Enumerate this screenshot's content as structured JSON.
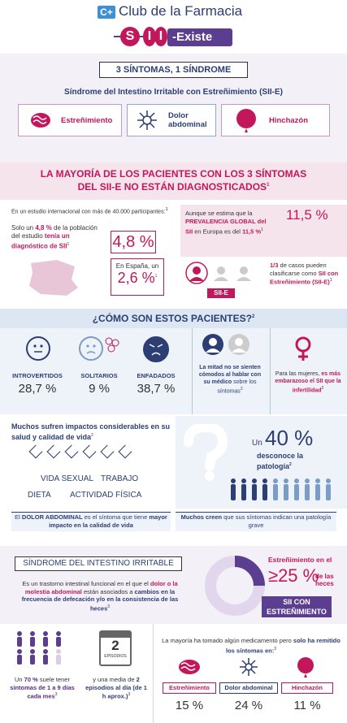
{
  "header": {
    "logo_badge": "C+",
    "logo_text": "Club de la Farmacia",
    "brand_letters": [
      "S",
      "I",
      "I"
    ],
    "brand_rest": "-Existe",
    "accent_colors": {
      "purple": "#5b3e8f",
      "pink": "#c2185b",
      "navy": "#2c3e73"
    }
  },
  "section1": {
    "title": "3 SÍNTOMAS, 1 SÍNDROME",
    "subtitle": "Síndrome del Intestino Irritable con Estreñimiento (SII-E)",
    "symptoms": [
      {
        "label": "Estreñimiento",
        "icon": "intestine-icon"
      },
      {
        "label": "Dolor abdominal",
        "icon": "pain-burst-icon"
      },
      {
        "label": "Hinchazón",
        "icon": "balloon-icon"
      }
    ]
  },
  "section2": {
    "title_line1": "LA MAYORÍA DE LOS PACIENTES CON LOS 3 SÍNTOMAS",
    "title_line2": "DEL SII-E NO ESTÁN DIAGNOSTICADOS",
    "title_sup": "1",
    "study_note": "En un estudio internacional con más de 40.000 participantes:",
    "study_sup": "1",
    "diag_text_a": "Solo un ",
    "diag_text_b": "4,8 %",
    "diag_text_c": " de la población del estudio ",
    "diag_text_d": "tenía un diagnóstico de SII",
    "diag_sup": "1",
    "pct_intl": "4,8 %",
    "spain_label": "En España, un",
    "pct_spain": "2,6 %",
    "spain_sup": "1",
    "prev_text_a": "Aunque se estima que la ",
    "prev_text_b": "PREVALENCIA GLOBAL del SII",
    "prev_text_c": " en Europa es del ",
    "prev_text_d": "11,5 %",
    "prev_sup": "1",
    "pct_europe": "11,5 %",
    "badge": "SII-E",
    "third_a": "1/3",
    "third_b": " de casos pueden clasificarse como ",
    "third_c": "SII con Estreñimiento (SII-E)",
    "third_sup": "1"
  },
  "section3": {
    "title": "¿CÓMO SON ESTOS PACIENTES?",
    "title_sup": "2",
    "traits": [
      {
        "label": "INTROVERTIDOS",
        "pct": "28,7 %"
      },
      {
        "label": "SOLITARIOS",
        "pct": "9 %"
      },
      {
        "label": "ENFADADOS",
        "pct": "38,7 %"
      }
    ],
    "half_a": "La mitad no se sienten cómodos al hablar con su médico",
    "half_b": " sobre los síntomas",
    "half_sup": "2",
    "women_a": "Para las mujeres, ",
    "women_b": "es más embarazoso el SII que la infertilidad",
    "women_sup": "2"
  },
  "section4": {
    "impact_a": "Muchos sufren impactos considerables en su ",
    "impact_b": "salud y calidad de vida",
    "impact_sup": "2",
    "keywords": [
      "VIDA SEXUAL",
      "TRABAJO",
      "DIETA",
      "ACTIVIDAD FÍSICA"
    ],
    "unknown_prefix": "Un",
    "unknown_pct": "40 %",
    "unknown_text": "desconoce la patología",
    "unknown_sup": "2",
    "pain_a": "El ",
    "pain_b": "DOLOR ABDOMINAL",
    "pain_c": " es el síntoma que tiene ",
    "pain_d": "mayor impacto en la calidad de vida",
    "serious_a": "Muchos creen",
    "serious_b": " que sus síntomas indican ",
    "serious_c": "una patología grave"
  },
  "section5": {
    "title": "SÍNDROME DEL INTESTINO IRRITABLE",
    "def_a": "Es un trastorno intestinal funcional en el que el ",
    "def_b": "dolor o la molestia abdominal",
    "def_c": " están asociados a ",
    "def_d": "cambios en la frecuencia de defecación y/o en la consistencia de las heces",
    "def_sup": "3",
    "heces_a": "Estreñimiento en el",
    "heces_pct": "≥25 %",
    "heces_b": "de las heces",
    "badge_line1": "SII CON",
    "badge_line2": "ESTREÑIMIENTO"
  },
  "section6": {
    "freq_a": "Un ",
    "freq_b": "70 %",
    "freq_c": " suele tener ",
    "freq_d": "síntomas de 1 a 9 días cada mes",
    "freq_sup": "3",
    "cal_num": "2",
    "cal_label": "EPISODIOS",
    "avg_a": "y una media de ",
    "avg_b": "2 episodios al día (de 1 h aprox.)",
    "avg_sup": "3",
    "med_a": "La mayoría ha tomado algún medicamento pero ",
    "med_b": "solo ha remitido los síntomas en:",
    "med_sup": "3",
    "results": [
      {
        "label": "Estreñimiento",
        "pct": "15 %"
      },
      {
        "label": "Dolor abdominal",
        "pct": "24 %"
      },
      {
        "label": "Hinchazón",
        "pct": "11 %"
      }
    ]
  }
}
